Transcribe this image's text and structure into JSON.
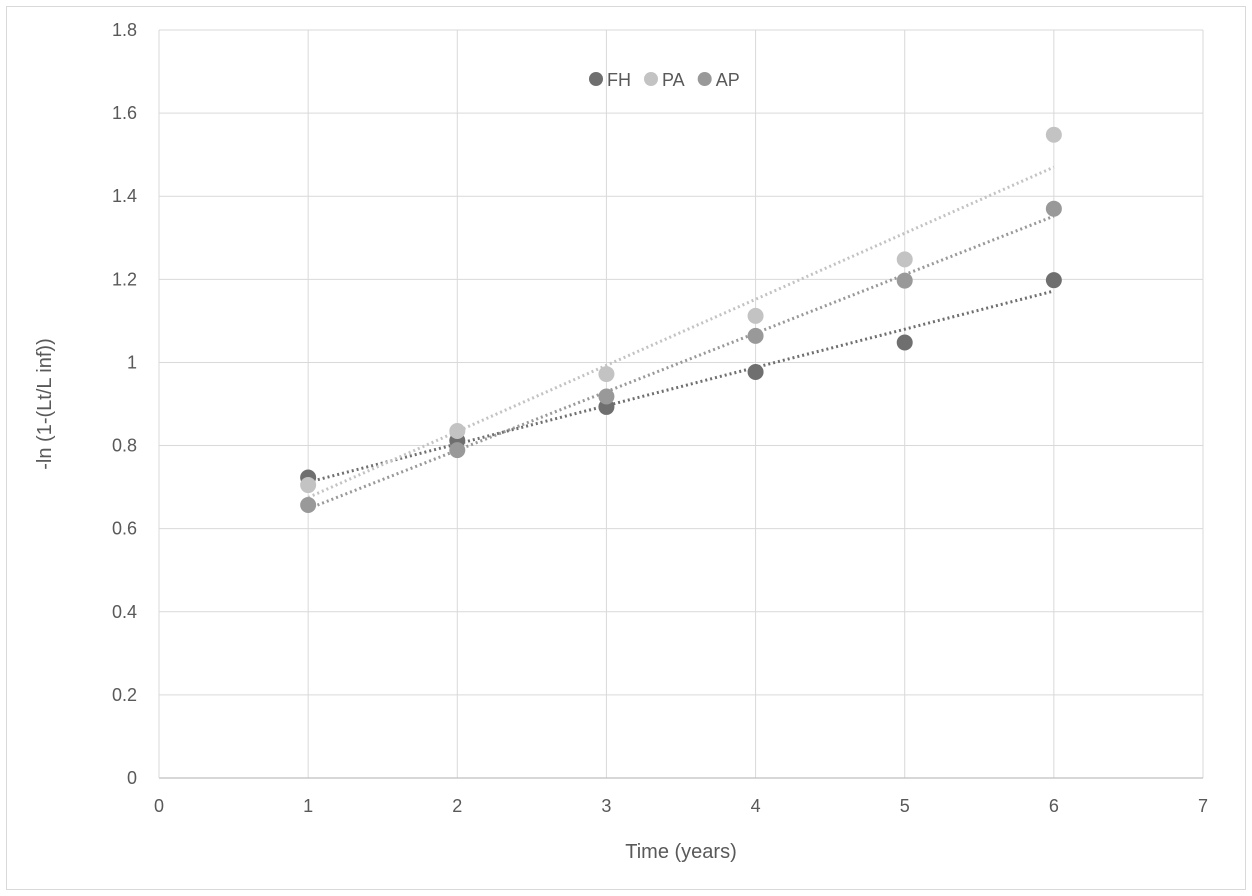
{
  "chart_data": {
    "type": "scatter",
    "title": "",
    "xlabel": "Time (years)",
    "ylabel": "-ln (1-(Lt/L inf))",
    "xlim": [
      0,
      7
    ],
    "ylim": [
      0,
      1.8
    ],
    "x_ticks": [
      "0",
      "1",
      "2",
      "3",
      "4",
      "5",
      "6",
      "7"
    ],
    "y_ticks": [
      "0",
      "0.2",
      "0.4",
      "0.6",
      "0.8",
      "1",
      "1.2",
      "1.4",
      "1.6",
      "1.8"
    ],
    "grid": true,
    "legend_position": "top-center",
    "trendlines": "linear, dotted",
    "series": [
      {
        "name": "FH",
        "color": "#6f6f6f",
        "x": [
          1,
          2,
          3,
          4,
          5,
          6
        ],
        "y": [
          0.723,
          0.812,
          0.893,
          0.977,
          1.048,
          1.198
        ],
        "trend": [
          [
            1,
            0.712
          ],
          [
            6,
            1.172
          ]
        ]
      },
      {
        "name": "PA",
        "color": "#c3c3c3",
        "x": [
          1,
          2,
          3,
          4,
          5,
          6
        ],
        "y": [
          0.705,
          0.835,
          0.972,
          1.112,
          1.248,
          1.548
        ],
        "trend": [
          [
            1,
            0.675
          ],
          [
            6,
            1.47
          ]
        ]
      },
      {
        "name": "AP",
        "color": "#999999",
        "x": [
          1,
          2,
          3,
          4,
          5,
          6
        ],
        "y": [
          0.657,
          0.789,
          0.918,
          1.064,
          1.197,
          1.37
        ],
        "trend": [
          [
            1,
            0.648
          ],
          [
            6,
            1.352
          ]
        ]
      }
    ]
  }
}
